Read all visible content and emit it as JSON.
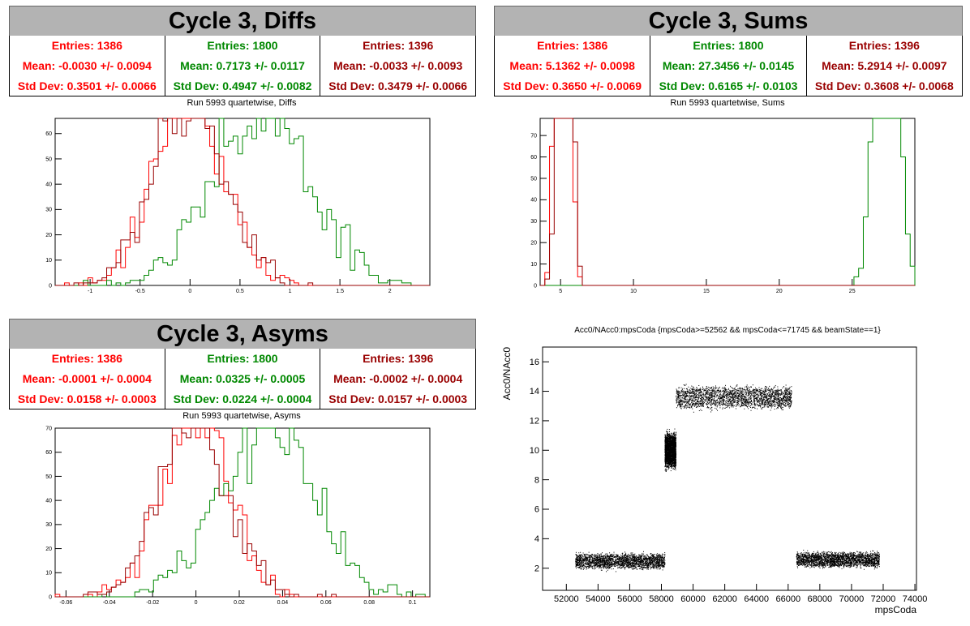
{
  "colors": {
    "red": "#ff0000",
    "green": "#008800",
    "darkred": "#990000",
    "black": "#000000",
    "banner": "#b3b3b3"
  },
  "diffs": {
    "banner": "Cycle 3, Diffs",
    "subtitle": "Run 5993 quartetwise, Diffs",
    "stats": [
      {
        "entries": "Entries: 1386",
        "mean": "Mean: -0.0030 +/- 0.0094",
        "std": "Std Dev: 0.3501 +/- 0.0066",
        "color": "#ff0000"
      },
      {
        "entries": "Entries: 1800",
        "mean": "Mean: 0.7173 +/- 0.0117",
        "std": "Std Dev: 0.4947 +/- 0.0082",
        "color": "#008800"
      },
      {
        "entries": "Entries: 1396",
        "mean": "Mean: -0.0033 +/- 0.0093",
        "std": "Std Dev: 0.3479 +/- 0.0066",
        "color": "#990000"
      }
    ]
  },
  "sums": {
    "banner": "Cycle 3, Sums",
    "subtitle": "Run 5993 quartetwise, Sums",
    "stats": [
      {
        "entries": "Entries: 1386",
        "mean": "Mean: 5.1362 +/- 0.0098",
        "std": "Std Dev: 0.3650 +/- 0.0069",
        "color": "#ff0000"
      },
      {
        "entries": "Entries: 1800",
        "mean": "Mean: 27.3456 +/- 0.0145",
        "std": "Std Dev: 0.6165 +/- 0.0103",
        "color": "#008800"
      },
      {
        "entries": "Entries: 1396",
        "mean": "Mean: 5.2914 +/- 0.0097",
        "std": "Std Dev: 0.3608 +/- 0.0068",
        "color": "#990000"
      }
    ]
  },
  "asyms": {
    "banner": "Cycle 3, Asyms",
    "subtitle": "Run 5993 quartetwise, Asyms",
    "stats": [
      {
        "entries": "Entries: 1386",
        "mean": "Mean: -0.0001 +/- 0.0004",
        "std": "Std Dev: 0.0158 +/- 0.0003",
        "color": "#ff0000"
      },
      {
        "entries": "Entries: 1800",
        "mean": "Mean: 0.0325 +/- 0.0005",
        "std": "Std Dev: 0.0224 +/- 0.0004",
        "color": "#008800"
      },
      {
        "entries": "Entries: 1396",
        "mean": "Mean: -0.0002 +/- 0.0004",
        "std": "Std Dev: 0.0157 +/- 0.0003",
        "color": "#990000"
      }
    ]
  },
  "scatter": {
    "title": "Acc0/NAcc0:mpsCoda {mpsCoda>=52562 && mpsCoda<=71745 && beamState==1}"
  },
  "chart_data": [
    {
      "type": "histogram",
      "title": "Run 5993 quartetwise, Diffs",
      "xlim": [
        -1.35,
        2.4
      ],
      "ylim": [
        0,
        66
      ],
      "xticks": [
        -1,
        -0.5,
        0,
        0.5,
        1,
        1.5,
        2
      ],
      "yticks": [
        0,
        10,
        20,
        30,
        40,
        50,
        60
      ],
      "series": [
        {
          "color": "#ff0000",
          "mean": -0.003,
          "std": 0.3501,
          "entries": 1386,
          "bins": 50
        },
        {
          "color": "#008800",
          "mean": 0.7173,
          "std": 0.4947,
          "entries": 1800,
          "bins": 50
        },
        {
          "color": "#990000",
          "mean": -0.0033,
          "std": 0.3479,
          "entries": 1396,
          "bins": 50
        }
      ]
    },
    {
      "type": "histogram",
      "title": "Run 5993 quartetwise, Sums",
      "xlim": [
        3.6,
        29.3
      ],
      "ylim": [
        0,
        78
      ],
      "xticks": [
        5,
        10,
        15,
        20,
        25
      ],
      "yticks": [
        0,
        10,
        20,
        30,
        40,
        50,
        60,
        70
      ],
      "series": [
        {
          "color": "#ff0000",
          "mean": 5.1362,
          "std": 0.365,
          "entries": 1386,
          "bins": 50
        },
        {
          "color": "#008800",
          "mean": 27.3456,
          "std": 0.6165,
          "entries": 1800,
          "bins": 50
        },
        {
          "color": "#990000",
          "mean": 5.2914,
          "std": 0.3608,
          "entries": 1396,
          "bins": 50
        }
      ]
    },
    {
      "type": "histogram",
      "title": "Run 5993 quartetwise, Asyms",
      "xlim": [
        -0.065,
        0.108
      ],
      "ylim": [
        0,
        70
      ],
      "xticks": [
        -0.06,
        -0.04,
        -0.02,
        0,
        0.02,
        0.04,
        0.06,
        0.08,
        0.1
      ],
      "yticks": [
        0,
        10,
        20,
        30,
        40,
        50,
        60,
        70
      ],
      "series": [
        {
          "color": "#ff0000",
          "mean": -0.0001,
          "std": 0.0158,
          "entries": 1386,
          "bins": 50
        },
        {
          "color": "#008800",
          "mean": 0.0325,
          "std": 0.0224,
          "entries": 1800,
          "bins": 50
        },
        {
          "color": "#990000",
          "mean": -0.0002,
          "std": 0.0157,
          "entries": 1396,
          "bins": 50
        }
      ]
    },
    {
      "type": "scatter",
      "title": "Acc0/NAcc0:mpsCoda {mpsCoda>=52562 && mpsCoda<=71745 && beamState==1}",
      "xlabel": "mpsCoda",
      "ylabel": "Acc0/NAcc0",
      "xlim": [
        50500,
        74100
      ],
      "ylim": [
        0.5,
        17
      ],
      "xticks": [
        52000,
        54000,
        56000,
        58000,
        60000,
        62000,
        64000,
        66000,
        68000,
        70000,
        72000,
        74000
      ],
      "yticks": [
        2,
        4,
        6,
        8,
        10,
        12,
        14,
        16
      ],
      "clusters": [
        {
          "x": [
            52562,
            58200
          ],
          "y_center": 2.5,
          "y_spread": 0.4
        },
        {
          "x": [
            58200,
            58900
          ],
          "y_center": 10.0,
          "y_spread": 0.9
        },
        {
          "x": [
            58900,
            66200
          ],
          "y_center": 13.6,
          "y_spread": 0.6
        },
        {
          "x": [
            66500,
            71745
          ],
          "y_center": 2.6,
          "y_spread": 0.4
        }
      ]
    }
  ]
}
